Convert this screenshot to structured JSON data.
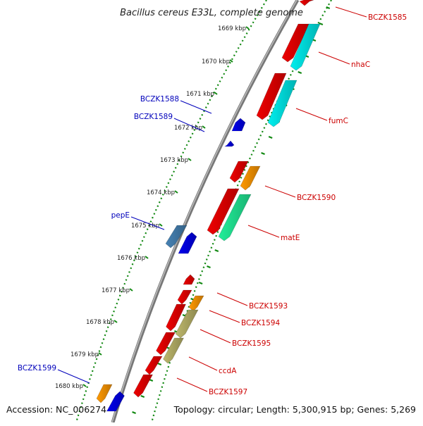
{
  "title": "Bacillus cereus E33L, complete genome",
  "footer": {
    "accession": "Accession: NC_006274",
    "summary": "Topology: circular; Length: 5,300,915 bp; Genes: 5,269"
  },
  "ruler_ticks": [
    "1669 kbp",
    "1670 kbp",
    "1671 kbp",
    "1672 kbp",
    "1673 kbp",
    "1674 kbp",
    "1675 kbp",
    "1676 kbp",
    "1677 kbp",
    "1678 kbp",
    "1679 kbp",
    "1680 kbp"
  ],
  "gene_labels": {
    "right": [
      "BCZK1585",
      "nhaC",
      "fumC",
      "BCZK1590",
      "matE",
      "BCZK1593",
      "BCZK1594",
      "BCZK1595",
      "ccdA",
      "BCZK1597"
    ],
    "left": [
      "BCZK1588",
      "BCZK1589",
      "pepE",
      "BCZK1599"
    ]
  },
  "colors": {
    "red": "#ee0000",
    "cyan": "#00eeee",
    "orange": "#ff9900",
    "green": "#22ee99",
    "blue": "#0000ee",
    "steelblue": "#4682b4",
    "khaki": "#bdb76b",
    "backbone": "#777777",
    "dots": "#118811",
    "label_red": "#cc0000",
    "label_blue": "#0000bb"
  }
}
